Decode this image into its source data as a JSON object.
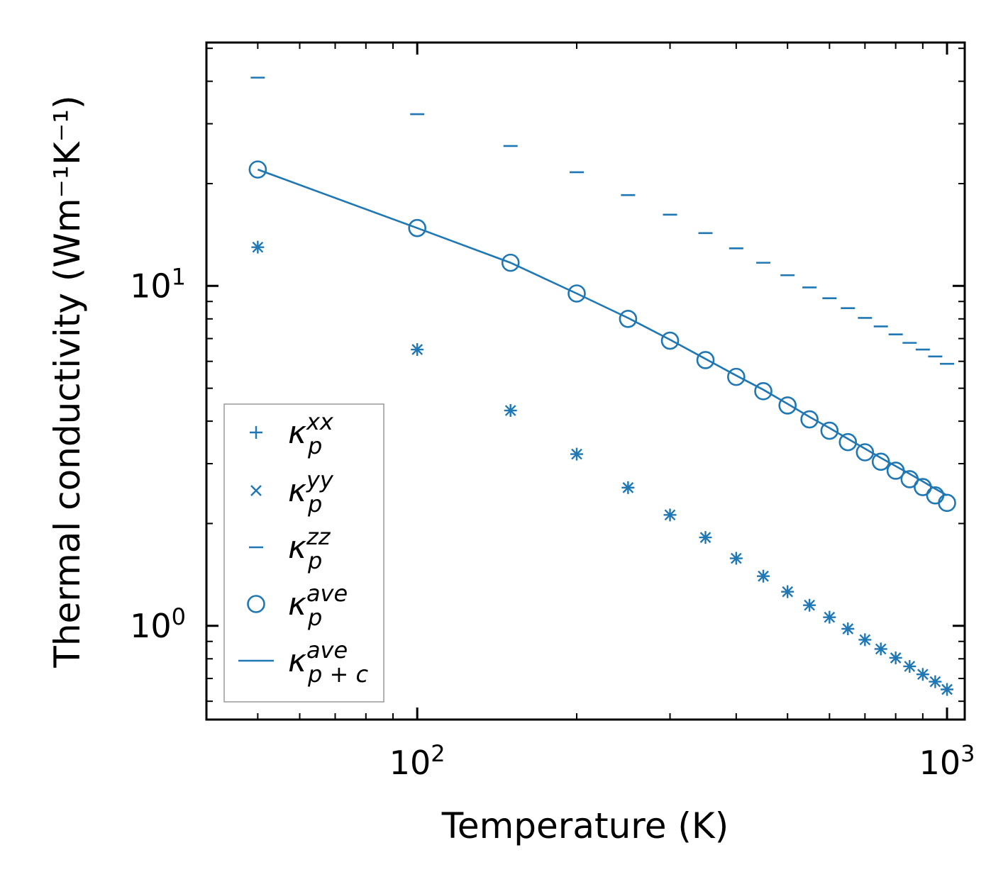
{
  "chart_data": {
    "type": "scatter",
    "x_scale": "log",
    "y_scale": "log",
    "xlabel": "Temperature (K)",
    "ylabel": "Thermal conductivity (Wm⁻¹K⁻¹)",
    "xlim": [
      40,
      1080
    ],
    "ylim": [
      0.53,
      52
    ],
    "x_ticks": [
      {
        "value": 100,
        "base": "10",
        "exp": "2"
      },
      {
        "value": 1000,
        "base": "10",
        "exp": "3"
      }
    ],
    "y_ticks": [
      {
        "value": 1,
        "base": "10",
        "exp": "0"
      },
      {
        "value": 10,
        "base": "10",
        "exp": "1"
      }
    ],
    "color": "#1f77b4",
    "x": [
      50,
      100,
      150,
      200,
      250,
      300,
      350,
      400,
      450,
      500,
      550,
      600,
      650,
      700,
      750,
      800,
      850,
      900,
      950,
      1000
    ],
    "series": [
      {
        "name": "xx",
        "marker": "plus",
        "label_main": "κ",
        "label_sub": "p",
        "label_sup": "xx",
        "values": [
          13.0,
          6.5,
          4.3,
          3.2,
          2.55,
          2.12,
          1.82,
          1.58,
          1.4,
          1.26,
          1.15,
          1.06,
          0.98,
          0.91,
          0.855,
          0.805,
          0.76,
          0.72,
          0.685,
          0.65
        ]
      },
      {
        "name": "yy",
        "marker": "x",
        "label_main": "κ",
        "label_sub": "p",
        "label_sup": "yy",
        "values": [
          13.0,
          6.5,
          4.3,
          3.2,
          2.55,
          2.12,
          1.82,
          1.58,
          1.4,
          1.26,
          1.15,
          1.06,
          0.98,
          0.91,
          0.855,
          0.805,
          0.76,
          0.72,
          0.685,
          0.65
        ]
      },
      {
        "name": "zz",
        "marker": "hline",
        "label_main": "κ",
        "label_sub": "p",
        "label_sup": "zz",
        "values": [
          41.0,
          32.0,
          25.8,
          21.6,
          18.5,
          16.2,
          14.3,
          12.9,
          11.7,
          10.75,
          9.9,
          9.2,
          8.6,
          8.05,
          7.6,
          7.2,
          6.8,
          6.5,
          6.2,
          5.9
        ]
      },
      {
        "name": "ave",
        "marker": "circle",
        "label_main": "κ",
        "label_sub": "p",
        "label_sup": "ave",
        "values": [
          22.0,
          14.8,
          11.7,
          9.5,
          8.0,
          6.9,
          6.05,
          5.4,
          4.9,
          4.45,
          4.05,
          3.75,
          3.47,
          3.24,
          3.04,
          2.86,
          2.7,
          2.56,
          2.42,
          2.3
        ]
      },
      {
        "name": "ave-total",
        "marker": "line",
        "label_main": "κ",
        "label_sub": "p + c",
        "label_sup": "ave",
        "values": [
          22.0,
          14.8,
          11.7,
          9.5,
          8.05,
          6.95,
          6.1,
          5.45,
          4.95,
          4.5,
          4.12,
          3.82,
          3.55,
          3.32,
          3.12,
          2.95,
          2.8,
          2.66,
          2.53,
          2.42
        ]
      }
    ],
    "legend_position": "lower-left"
  }
}
